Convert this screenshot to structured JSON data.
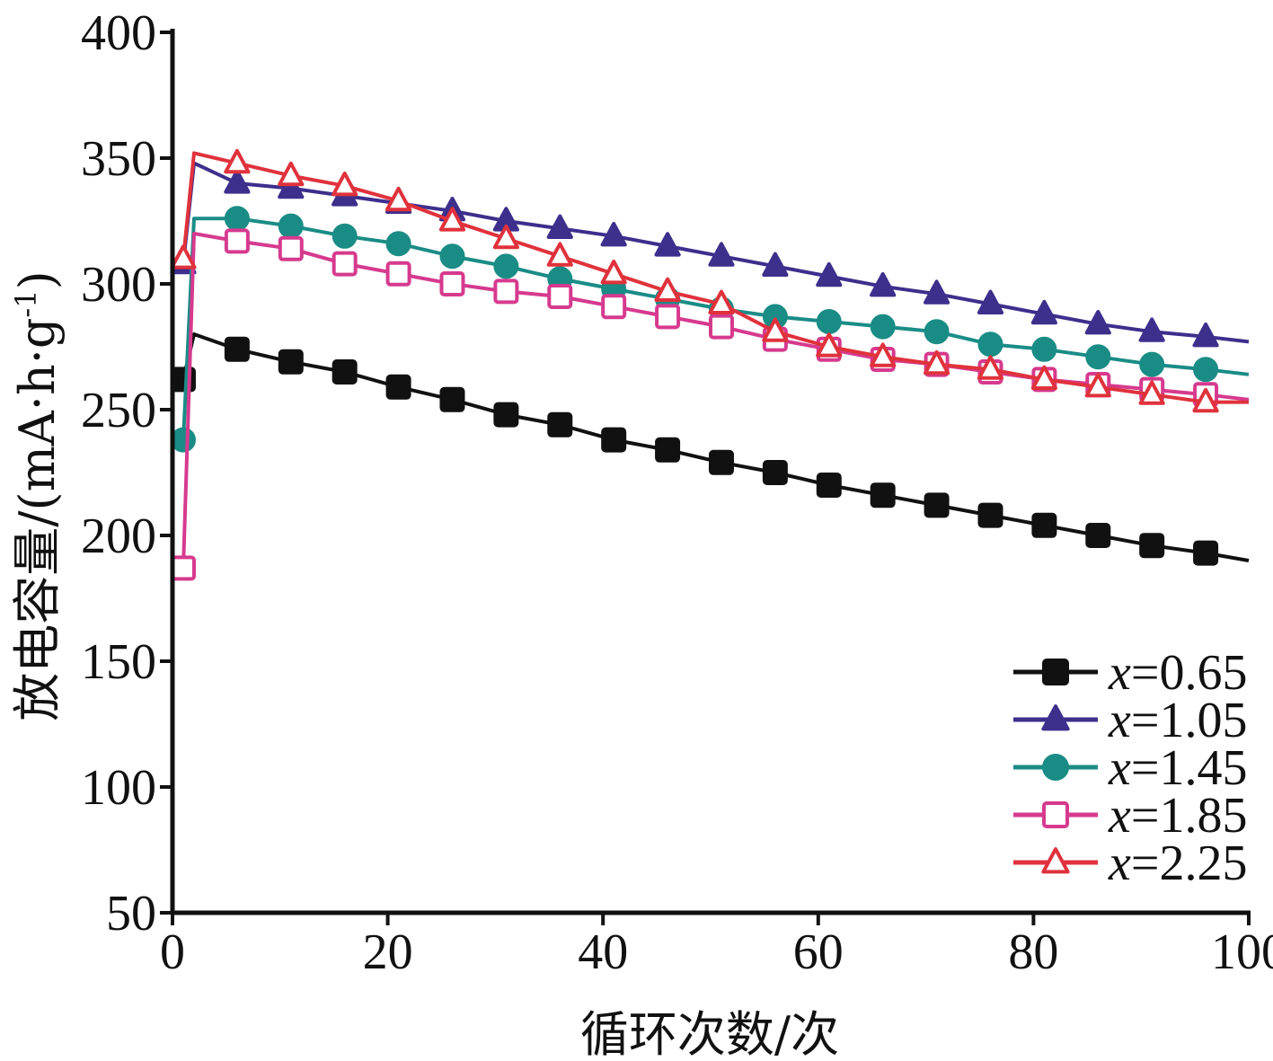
{
  "chart_data": {
    "type": "line",
    "title": "",
    "xlabel": "循环次数/次",
    "ylabel": "放电容量/(mA·h·g",
    "ylabel_superscript": "-1",
    "ylabel_close": ")",
    "xlim": [
      0,
      100
    ],
    "ylim": [
      50,
      400
    ],
    "xticks": [
      0,
      20,
      40,
      60,
      80,
      100
    ],
    "yticks": [
      50,
      100,
      150,
      200,
      250,
      300,
      350,
      400
    ],
    "grid": false,
    "legend_position": "bottom-right",
    "legend_var": "x",
    "series": [
      {
        "name": "=0.65",
        "color": "#111111",
        "marker": "square-filled",
        "x": [
          1,
          2,
          6,
          11,
          16,
          21,
          26,
          31,
          36,
          41,
          46,
          51,
          56,
          61,
          66,
          71,
          76,
          81,
          86,
          91,
          96,
          100
        ],
        "y": [
          262,
          280,
          274,
          269,
          265,
          259,
          254,
          248,
          244,
          238,
          234,
          229,
          225,
          220,
          216,
          212,
          208,
          204,
          200,
          196,
          193,
          190
        ]
      },
      {
        "name": "=1.05",
        "color": "#3d2f8c",
        "marker": "triangle-filled",
        "x": [
          1,
          2,
          6,
          11,
          16,
          21,
          26,
          31,
          36,
          41,
          46,
          51,
          56,
          61,
          66,
          71,
          76,
          81,
          86,
          91,
          96,
          100
        ],
        "y": [
          308,
          348,
          340,
          338,
          335,
          332,
          329,
          325,
          322,
          319,
          315,
          311,
          307,
          303,
          299,
          296,
          292,
          288,
          284,
          281,
          279,
          277
        ]
      },
      {
        "name": "=1.45",
        "color": "#1a8c86",
        "marker": "circle-filled",
        "x": [
          1,
          2,
          6,
          11,
          16,
          21,
          26,
          31,
          36,
          41,
          46,
          51,
          56,
          61,
          66,
          71,
          76,
          81,
          86,
          91,
          96,
          100
        ],
        "y": [
          238,
          326,
          326,
          323,
          319,
          316,
          311,
          307,
          302,
          298,
          294,
          290,
          287,
          285,
          283,
          281,
          276,
          274,
          271,
          268,
          266,
          264
        ]
      },
      {
        "name": "=1.85",
        "color": "#d63a8e",
        "marker": "square-open",
        "x": [
          1,
          2,
          6,
          11,
          16,
          21,
          26,
          31,
          36,
          41,
          46,
          51,
          56,
          61,
          66,
          71,
          76,
          81,
          86,
          91,
          96,
          100
        ],
        "y": [
          187,
          320,
          317,
          314,
          308,
          304,
          300,
          297,
          295,
          291,
          287,
          283,
          278,
          274,
          270,
          268,
          265,
          262,
          260,
          258,
          256,
          254
        ]
      },
      {
        "name": "=2.25",
        "color": "#e0323c",
        "marker": "triangle-open",
        "x": [
          1,
          2,
          6,
          11,
          16,
          21,
          26,
          31,
          36,
          41,
          46,
          51,
          56,
          61,
          66,
          71,
          76,
          81,
          86,
          91,
          96,
          100
        ],
        "y": [
          310,
          352,
          348,
          343,
          339,
          333,
          325,
          318,
          311,
          304,
          297,
          292,
          281,
          275,
          271,
          268,
          266,
          262,
          259,
          256,
          253,
          253
        ]
      }
    ]
  }
}
